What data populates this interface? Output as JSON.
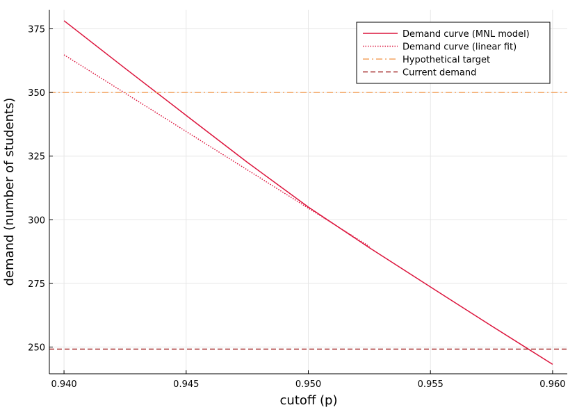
{
  "chart_data": {
    "type": "line",
    "xlabel": "cutoff (p)",
    "ylabel": "demand (number of students)",
    "xlim": [
      0.9394,
      0.9606
    ],
    "ylim": [
      239.5,
      382.5
    ],
    "x_ticks": [
      "0.940",
      "0.945",
      "0.950",
      "0.955",
      "0.960"
    ],
    "x_tick_values": [
      0.94,
      0.945,
      0.95,
      0.955,
      0.96
    ],
    "y_ticks": [
      "250",
      "275",
      "300",
      "325",
      "350",
      "375"
    ],
    "y_tick_values": [
      250,
      275,
      300,
      325,
      350,
      375
    ],
    "grid": true,
    "legend_position": "top-right",
    "series": [
      {
        "name": "Demand curve (MNL model)",
        "style": "solid",
        "color": "#dc143c",
        "x": [
          0.94,
          0.9425,
          0.945,
          0.9475,
          0.95,
          0.9525,
          0.955,
          0.9575,
          0.96
        ],
        "y": [
          378.2,
          359.5,
          341.0,
          322.6,
          305.0,
          289.0,
          273.6,
          258.3,
          243.2
        ]
      },
      {
        "name": "Demand curve (linear fit)",
        "style": "dotted",
        "color": "#dc143c",
        "x": [
          0.94,
          0.9525
        ],
        "y": [
          364.8,
          289.5
        ]
      },
      {
        "name": "Hypothetical target",
        "style": "dashdot",
        "color": "#f4a460",
        "x": [
          0.9394,
          0.9606
        ],
        "y": [
          350,
          350
        ]
      },
      {
        "name": "Current demand",
        "style": "dashed",
        "color": "#a52a2a",
        "x": [
          0.9394,
          0.9606
        ],
        "y": [
          249.2,
          249.2
        ]
      }
    ]
  }
}
